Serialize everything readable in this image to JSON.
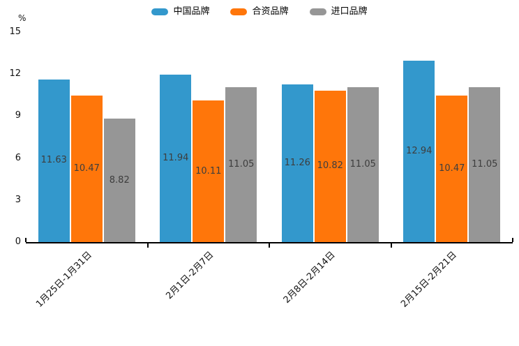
{
  "chart_data": {
    "type": "bar",
    "title": "",
    "unit_label": "%",
    "categories": [
      "1月25日-1月31日",
      "2月1日-2月7日",
      "2月8日-2月14日",
      "2月15日-2月21日"
    ],
    "series": [
      {
        "name": "中国品牌",
        "color": "#3398cc",
        "values": [
          11.63,
          11.94,
          11.26,
          12.94
        ]
      },
      {
        "name": "合资品牌",
        "color": "#ff760a",
        "values": [
          10.47,
          10.11,
          10.82,
          10.47
        ]
      },
      {
        "name": "进口品牌",
        "color": "#969696",
        "values": [
          8.82,
          11.05,
          11.05,
          11.05
        ]
      }
    ],
    "y_ticks": [
      0,
      3,
      6,
      9,
      12,
      15
    ],
    "ylim": [
      0,
      15
    ],
    "legend_position": "top",
    "grid": false,
    "data_labels": true,
    "data_label_decimals": 2,
    "value_label_color": "#3d3d3d",
    "axis_color": "#000000"
  }
}
